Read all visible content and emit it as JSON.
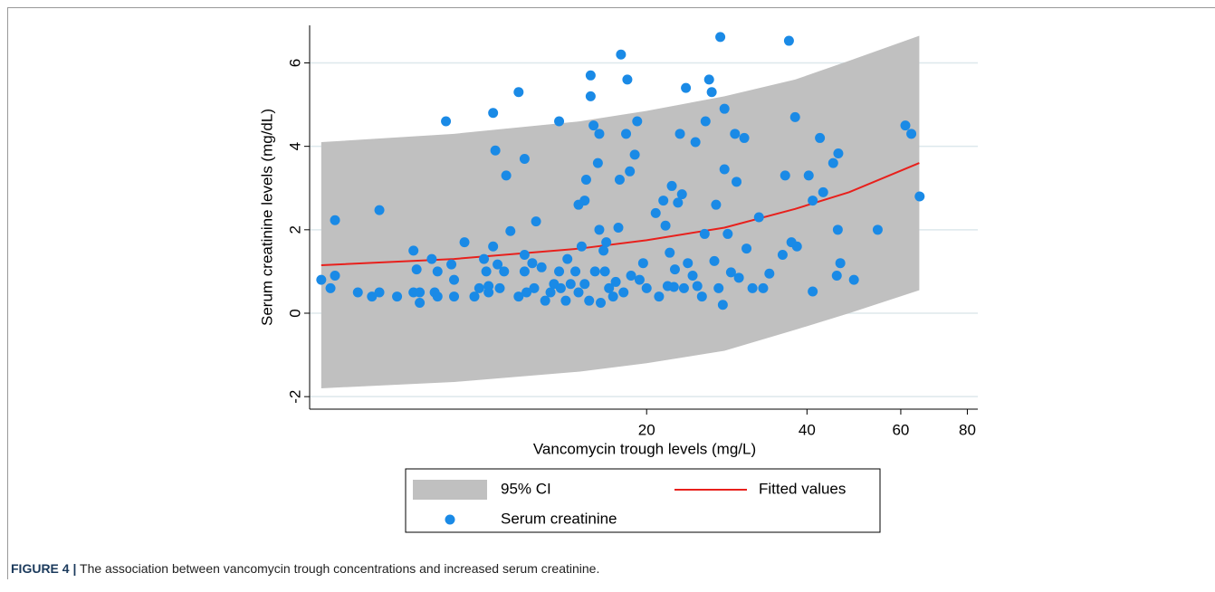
{
  "chart_data": {
    "type": "scatter",
    "xlabel": "Vancomycin trough levels (mg/L)",
    "ylabel": "Serum creatinine levels (mg/dL)",
    "xscale": "log",
    "xlim": [
      4.66,
      83.7
    ],
    "xticks": [
      20,
      40,
      60,
      80
    ],
    "ylim": [
      -2.3,
      6.9
    ],
    "yticks": [
      -2,
      0,
      2,
      4,
      6
    ],
    "grid": true,
    "series": [
      {
        "name": "95% CI",
        "type": "area",
        "color": "#c0c0c0",
        "x": [
          4.9,
          8.7,
          15,
          20,
          28,
          38,
          48,
          65
        ],
        "lower": [
          -1.8,
          -1.65,
          -1.4,
          -1.2,
          -0.9,
          -0.4,
          0.0,
          0.55
        ],
        "upper": [
          4.1,
          4.3,
          4.6,
          4.85,
          5.2,
          5.6,
          6.05,
          6.65
        ]
      },
      {
        "name": "Fitted values",
        "type": "line",
        "color": "#e8201c",
        "x": [
          4.9,
          8.7,
          15,
          20,
          28,
          38,
          48,
          65
        ],
        "values": [
          1.15,
          1.3,
          1.55,
          1.75,
          2.05,
          2.5,
          2.9,
          3.6
        ]
      },
      {
        "name": "Serum creatinine",
        "type": "scatter",
        "color": "#1a8ae6",
        "x": [
          4.9,
          5.1,
          5.2,
          5.2,
          5.74,
          6.1,
          6.3,
          6.3,
          6.8,
          7.3,
          7.3,
          7.4,
          7.5,
          7.5,
          7.9,
          8.0,
          8.1,
          8.1,
          8.4,
          8.6,
          8.7,
          8.7,
          9.1,
          9.5,
          9.7,
          9.9,
          10.0,
          10.1,
          10.1,
          10.3,
          10.3,
          10.4,
          10.5,
          10.6,
          10.8,
          10.9,
          11.1,
          11.5,
          11.5,
          11.8,
          11.8,
          11.8,
          11.9,
          12.2,
          12.3,
          12.4,
          12.7,
          12.9,
          13.2,
          13.4,
          13.7,
          13.7,
          13.8,
          14.1,
          14.2,
          14.4,
          14.7,
          14.9,
          14.9,
          15.1,
          15.3,
          15.3,
          15.4,
          15.6,
          15.7,
          15.7,
          15.9,
          16.0,
          16.2,
          16.3,
          16.3,
          16.4,
          16.6,
          16.7,
          16.8,
          17.0,
          17.3,
          17.5,
          17.7,
          17.8,
          17.9,
          18.1,
          18.3,
          18.4,
          18.6,
          18.7,
          19.0,
          19.2,
          19.4,
          19.7,
          20.0,
          20.8,
          21.1,
          21.5,
          21.7,
          21.9,
          22.1,
          22.3,
          22.5,
          22.6,
          22.9,
          23.1,
          23.3,
          23.5,
          23.7,
          23.9,
          24.4,
          24.7,
          24.9,
          25.4,
          25.7,
          25.8,
          26.2,
          26.5,
          26.8,
          27.0,
          27.3,
          27.5,
          27.8,
          28.0,
          28.0,
          28.4,
          28.8,
          29.3,
          29.5,
          29.8,
          30.5,
          30.8,
          31.6,
          32.5,
          33.1,
          34.0,
          36.0,
          36.4,
          37.0,
          37.4,
          38.0,
          38.3,
          40.3,
          41.0,
          41.0,
          42.3,
          42.9,
          44.8,
          45.5,
          45.7,
          46.2,
          45.8,
          49.0,
          54.3,
          61.2,
          62.8,
          65.1
        ],
        "values": [
          0.8,
          0.6,
          2.23,
          0.9,
          0.5,
          0.4,
          0.5,
          2.47,
          0.4,
          0.5,
          1.5,
          1.05,
          0.25,
          0.5,
          1.3,
          0.5,
          0.4,
          1.0,
          4.6,
          1.17,
          0.8,
          0.4,
          1.7,
          0.4,
          0.6,
          1.3,
          1.0,
          0.65,
          0.5,
          4.8,
          1.6,
          3.9,
          1.17,
          0.6,
          1.0,
          3.3,
          1.97,
          5.3,
          0.4,
          3.7,
          1.4,
          1.0,
          0.5,
          1.2,
          0.6,
          2.2,
          1.1,
          0.3,
          0.5,
          0.7,
          1.0,
          4.6,
          0.6,
          0.3,
          1.3,
          0.7,
          1.0,
          2.6,
          0.5,
          1.6,
          0.7,
          2.7,
          3.2,
          0.3,
          5.7,
          5.2,
          4.5,
          1.0,
          3.6,
          2.0,
          4.3,
          0.25,
          1.5,
          1.0,
          1.7,
          0.6,
          0.4,
          0.75,
          2.05,
          3.2,
          6.2,
          0.5,
          4.3,
          5.6,
          3.4,
          0.9,
          3.8,
          4.6,
          0.8,
          1.2,
          0.6,
          2.4,
          0.4,
          2.7,
          2.1,
          0.65,
          1.45,
          3.05,
          0.63,
          1.05,
          2.65,
          4.3,
          2.85,
          0.6,
          5.4,
          1.2,
          0.9,
          4.1,
          0.65,
          0.4,
          1.9,
          4.6,
          5.6,
          5.3,
          1.25,
          2.6,
          0.6,
          6.62,
          0.2,
          4.9,
          3.45,
          1.9,
          0.98,
          4.3,
          3.15,
          0.85,
          4.2,
          1.55,
          0.6,
          2.3,
          0.6,
          0.95,
          1.4,
          3.3,
          6.53,
          1.7,
          4.7,
          1.6,
          3.3,
          0.52,
          2.7,
          4.2,
          2.9,
          3.6,
          0.9,
          2.0,
          1.2,
          3.83,
          0.8,
          2.0,
          4.5,
          4.3,
          2.8
        ]
      }
    ]
  },
  "caption": {
    "label": "FIGURE 4 |",
    "text": "The association between vancomycin trough concentrations and increased serum creatinine."
  }
}
